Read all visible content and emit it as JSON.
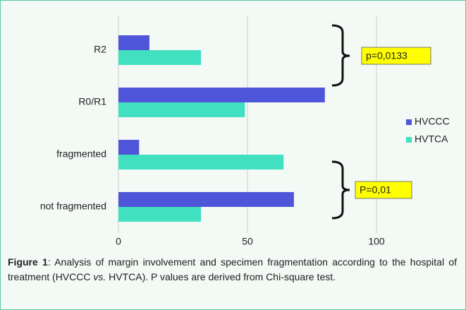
{
  "chart_data": {
    "type": "hbar",
    "categories": [
      "R2",
      "R0/R1",
      "fragmented",
      "not fragmented"
    ],
    "series": [
      {
        "name": "HVCCC",
        "color": "#4f55d8",
        "values": [
          12,
          80,
          8,
          68
        ]
      },
      {
        "name": "HVTCA",
        "color": "#40e0c0",
        "values": [
          32,
          49,
          64,
          32
        ]
      }
    ],
    "xlim": [
      0,
      100
    ],
    "xticks": [
      0,
      50,
      100
    ],
    "grid": true,
    "legend": "right",
    "annotations": [
      "p=0,0133",
      "P=0,01"
    ],
    "caption": {
      "label": "Figure 1",
      "text_1": ": Analysis of margin involvement and specimen fragmentation according to the hospital of treatment (HVCCC ",
      "emphasis": "vs.",
      "text_2": " HVTCA). P values are derived from Chi-square test."
    }
  }
}
